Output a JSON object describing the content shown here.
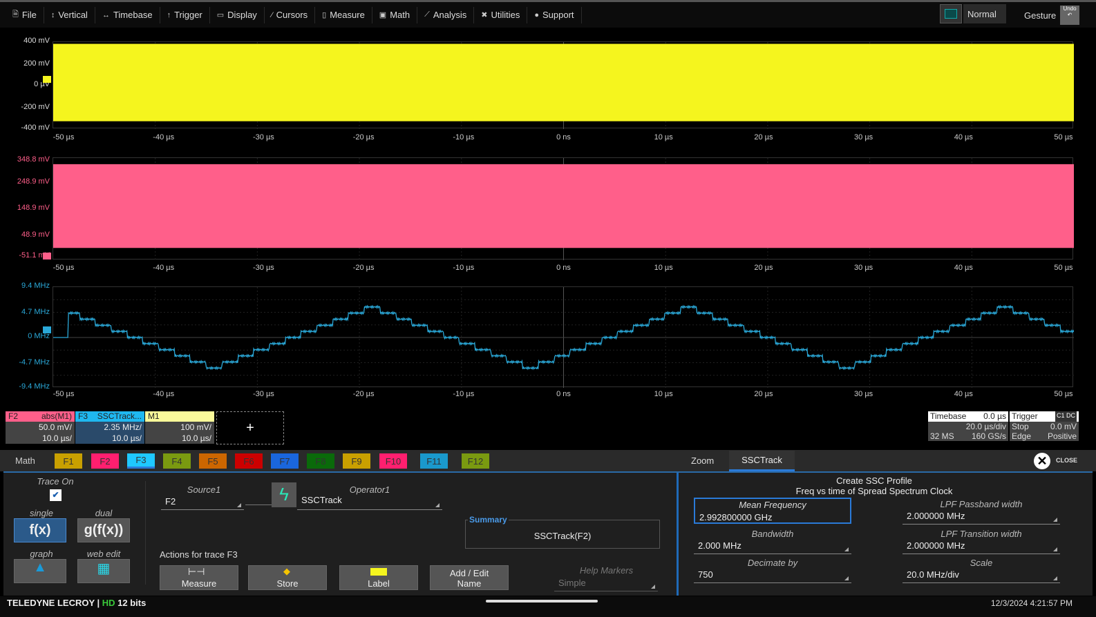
{
  "menu": [
    {
      "label": "File",
      "icon": "file-icon",
      "glyph": "🗎"
    },
    {
      "label": "Vertical",
      "icon": "vertical-icon",
      "glyph": "↕"
    },
    {
      "label": "Timebase",
      "icon": "timebase-icon",
      "glyph": "↔"
    },
    {
      "label": "Trigger",
      "icon": "trigger-icon",
      "glyph": "↑"
    },
    {
      "label": "Display",
      "icon": "display-icon",
      "glyph": "▭"
    },
    {
      "label": "Cursors",
      "icon": "cursors-icon",
      "glyph": "⁄"
    },
    {
      "label": "Measure",
      "icon": "measure-icon",
      "glyph": "▯"
    },
    {
      "label": "Math",
      "icon": "math-icon",
      "glyph": "▣"
    },
    {
      "label": "Analysis",
      "icon": "analysis-icon",
      "glyph": "⟋"
    },
    {
      "label": "Utilities",
      "icon": "utilities-icon",
      "glyph": "✖"
    },
    {
      "label": "Support",
      "icon": "support-icon",
      "glyph": "●"
    }
  ],
  "display_mode": "Normal",
  "gesture": "Gesture",
  "undo": "Undo",
  "time_labels": [
    "-50 µs",
    "-40 µs",
    "-30 µs",
    "-20 µs",
    "-10 µs",
    "0 ns",
    "10 µs",
    "20 µs",
    "30 µs",
    "40 µs",
    "50 µs"
  ],
  "grids": [
    {
      "trace": "M1",
      "color": "#f5f51e",
      "y_labels": [
        "400 mV",
        "200 mV",
        "0 µV",
        "-200 mV",
        "-400 mV"
      ],
      "label_color": "#dddddd"
    },
    {
      "trace": "F2",
      "color": "#ff5f8a",
      "y_labels": [
        "348.8 mV",
        "248.9 mV",
        "148.9 mV",
        "48.9 mV",
        "-51.1 mV"
      ],
      "label_color": "#ff5f8a"
    },
    {
      "trace": "F3",
      "color": "#2aa8d8",
      "y_labels": [
        "9.4 MHz",
        "4.7 MHz",
        "0 MHz",
        "-4.7 MHz",
        "-9.4 MHz"
      ],
      "label_color": "#2aa8d8"
    }
  ],
  "descriptors": [
    {
      "id": "F2",
      "name": "abs(M1)",
      "vdiv": "50.0 mV/",
      "tdiv": "10.0 µs/",
      "color": "#ff5f8a"
    },
    {
      "id": "F3",
      "name": "SSCTrack...",
      "vdiv": "2.35 MHz/",
      "tdiv": "10.0 µs/",
      "color": "#1fb8f0"
    },
    {
      "id": "M1",
      "name": "",
      "vdiv": "100 mV/",
      "tdiv": "10.0 µs/",
      "color": "#fafa9a"
    }
  ],
  "add_trace": "+",
  "timebase": {
    "title": "Timebase",
    "delay": "0.0 µs",
    "div": "20.0 µs/div",
    "samples": "32 MS",
    "rate": "160 GS/s"
  },
  "trigger": {
    "title": "Trigger",
    "source": "C1 DC",
    "mode": "Stop",
    "level": "0.0 mV",
    "type": "Edge",
    "slope": "Positive"
  },
  "tabs": {
    "math": "Math",
    "items": [
      {
        "label": "F1",
        "color": "#c9a000"
      },
      {
        "label": "F2",
        "color": "#ff1f6f"
      },
      {
        "label": "F3",
        "color": "#1fc8ff"
      },
      {
        "label": "F4",
        "color": "#7a9a10"
      },
      {
        "label": "F5",
        "color": "#cc6600"
      },
      {
        "label": "F6",
        "color": "#cc0000"
      },
      {
        "label": "F7",
        "color": "#1a66dd"
      },
      {
        "label": "F8",
        "color": "#0a6a0a"
      },
      {
        "label": "F9",
        "color": "#c9a000"
      },
      {
        "label": "F10",
        "color": "#ff1f6f"
      },
      {
        "label": "F11",
        "color": "#1a99cc"
      },
      {
        "label": "F12",
        "color": "#7a9a10"
      }
    ],
    "zoom": "Zoom",
    "ssctrack": "SSCTrack",
    "close": "CLOSE"
  },
  "panel": {
    "trace_on": "Trace On",
    "trace_on_checked": true,
    "single": "single",
    "single_btn": "f(x)",
    "dual": "dual",
    "dual_btn": "g(f(x))",
    "graph": "graph",
    "web_edit": "web edit",
    "source_label": "Source1",
    "source": "F2",
    "operator_label": "Operator1",
    "operator": "SSCTrack",
    "summary_label": "Summary",
    "summary": "SSCTrack(F2)",
    "actions": "Actions for trace F3",
    "measure": "Measure",
    "store": "Store",
    "label": "Label",
    "add_edit": "Add / Edit Name",
    "help_markers": "Help Markers",
    "help_value": "Simple"
  },
  "ssc": {
    "title": "Create SSC Profile",
    "subtitle": "Freq vs time of Spread Spectrum Clock",
    "mean_freq_label": "Mean Frequency",
    "mean_freq": "2.992800000 GHz",
    "bandwidth_label": "Bandwidth",
    "bandwidth": "2.000 MHz",
    "decimate_label": "Decimate by",
    "decimate": "750",
    "lpf_pass_label": "LPF Passband width",
    "lpf_pass": "2.000000 MHz",
    "lpf_trans_label": "LPF Transition width",
    "lpf_trans": "2.000000 MHz",
    "scale_label": "Scale",
    "scale": "20.0 MHz/div"
  },
  "footer": {
    "brand": "TELEDYNE LECROY",
    "hd": "HD",
    "bits": "12 bits",
    "datetime": "12/3/2024 4:21:57 PM"
  }
}
